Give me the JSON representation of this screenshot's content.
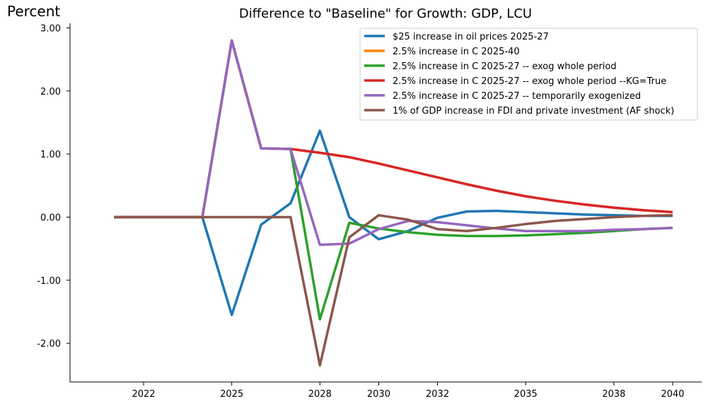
{
  "chart_data": {
    "type": "line",
    "title": "Difference to \"Baseline\" for Growth: GDP, LCU",
    "ylabel": "Percent",
    "xlabel": "",
    "ylim": [
      -2.6,
      3.05
    ],
    "xlim": [
      2019.5,
      2041
    ],
    "yticks": [
      3.0,
      2.0,
      1.0,
      0.0,
      -1.0,
      -2.0
    ],
    "ytick_labels": [
      "3.00",
      "2.00",
      "1.00",
      "0.00",
      "-1.00",
      "-2.00"
    ],
    "xticks": [
      2022,
      2025,
      2028,
      2030,
      2032,
      2035,
      2038,
      2040
    ],
    "xtick_labels": [
      "2022",
      "2025",
      "2028",
      "2030",
      "2032",
      "2035",
      "2038",
      "2040"
    ],
    "grid": false,
    "legend_position": "top-right",
    "x": [
      2021,
      2022,
      2023,
      2024,
      2025,
      2026,
      2027,
      2028,
      2029,
      2030,
      2031,
      2032,
      2033,
      2034,
      2035,
      2036,
      2037,
      2038,
      2039,
      2040
    ],
    "series": [
      {
        "name": "$25 increase in oil prices 2025-27",
        "color": "#1f77b4",
        "values": [
          0.0,
          0.0,
          0.0,
          0.0,
          -1.55,
          -0.12,
          0.22,
          1.37,
          0.0,
          -0.35,
          -0.22,
          -0.01,
          0.09,
          0.1,
          0.08,
          0.06,
          0.04,
          0.03,
          0.02,
          0.02
        ]
      },
      {
        "name": "2.5% increase in C 2025-40",
        "color": "#ff7f0e",
        "values": [
          0.0,
          0.0,
          0.0,
          0.0,
          2.8,
          1.09,
          1.08,
          1.02,
          0.95,
          0.85,
          0.74,
          0.63,
          0.52,
          0.42,
          0.33,
          0.26,
          0.2,
          0.15,
          0.11,
          0.08
        ]
      },
      {
        "name": "2.5% increase in C 2025-27 -- exog whole period",
        "color": "#2ca02c",
        "values": [
          0.0,
          0.0,
          0.0,
          0.0,
          2.8,
          1.09,
          1.08,
          -1.62,
          -0.09,
          -0.18,
          -0.24,
          -0.28,
          -0.3,
          -0.3,
          -0.29,
          -0.27,
          -0.25,
          -0.22,
          -0.19,
          -0.17
        ]
      },
      {
        "name": "2.5% increase in C 2025-27 -- exog whole period --KG=True",
        "color": "#d62728",
        "values": [
          0.0,
          0.0,
          0.0,
          0.0,
          2.8,
          1.09,
          1.08,
          1.02,
          0.95,
          0.85,
          0.74,
          0.63,
          0.52,
          0.42,
          0.33,
          0.26,
          0.2,
          0.15,
          0.11,
          0.08
        ]
      },
      {
        "name": "2.5% increase in C 2025-27 -- temporarily exogenized",
        "color": "#9467bd",
        "values": [
          0.0,
          0.0,
          0.0,
          0.0,
          2.8,
          1.09,
          1.08,
          -0.44,
          -0.42,
          -0.19,
          -0.06,
          -0.08,
          -0.13,
          -0.18,
          -0.22,
          -0.22,
          -0.22,
          -0.2,
          -0.19,
          -0.17
        ]
      },
      {
        "name": "1% of GDP increase in FDI and private investment (AF shock)",
        "color": "#8c564b",
        "values": [
          0.0,
          0.0,
          0.0,
          0.0,
          0.0,
          0.0,
          0.0,
          -2.35,
          -0.32,
          0.03,
          -0.04,
          -0.19,
          -0.22,
          -0.17,
          -0.11,
          -0.06,
          -0.03,
          0.0,
          0.02,
          0.03
        ]
      }
    ]
  }
}
